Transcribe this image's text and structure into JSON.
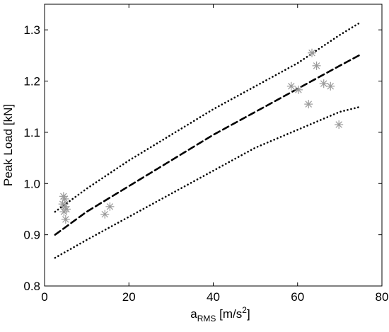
{
  "chart_data": {
    "type": "scatter",
    "title": "",
    "xlabel": {
      "base": "a",
      "sub": "RMS",
      "unit_pre": " [m/s",
      "sup": "2",
      "unit_post": "]"
    },
    "ylabel": "Peak Load [kN]",
    "xlim": [
      0,
      80
    ],
    "ylim": [
      0.8,
      1.35
    ],
    "x_ticks": [
      0,
      20,
      40,
      60,
      80
    ],
    "y_ticks": [
      0.8,
      0.9,
      1.0,
      1.1,
      1.2,
      1.3
    ],
    "x_tick_labels": [
      "0",
      "20",
      "40",
      "60",
      "80"
    ],
    "y_tick_labels": [
      "0.8",
      "0.9",
      "1.0",
      "1.1",
      "1.2",
      "1.3"
    ],
    "grid": false,
    "legend": "none",
    "colors": {
      "markers": "#9a9a9a",
      "lines": "#000000"
    },
    "series": [
      {
        "kind": "line",
        "style": "dashed",
        "x": [
          2.5,
          10,
          20,
          30,
          40,
          50,
          60,
          70,
          75
        ],
        "y": [
          0.9,
          0.945,
          0.995,
          1.045,
          1.095,
          1.14,
          1.185,
          1.23,
          1.252
        ]
      },
      {
        "kind": "line",
        "style": "dotted",
        "x": [
          2.5,
          10,
          20,
          30,
          40,
          50,
          60,
          70,
          75
        ],
        "y": [
          0.945,
          0.99,
          1.045,
          1.095,
          1.145,
          1.19,
          1.235,
          1.29,
          1.315
        ]
      },
      {
        "kind": "line",
        "style": "dotted",
        "x": [
          2.5,
          10,
          20,
          30,
          40,
          50,
          60,
          70,
          75
        ],
        "y": [
          0.855,
          0.89,
          0.935,
          0.98,
          1.025,
          1.07,
          1.105,
          1.14,
          1.15
        ]
      },
      {
        "kind": "scatter",
        "marker": "asterisk",
        "x": [
          4.5,
          4.8,
          4.3,
          4.9,
          5.2,
          4.6,
          5.0,
          14.3,
          15.5,
          58.5,
          60.2,
          62.6,
          63.4,
          64.5,
          66.2,
          67.8,
          69.8
        ],
        "y": [
          0.975,
          0.97,
          0.96,
          0.955,
          0.95,
          0.945,
          0.93,
          0.94,
          0.955,
          1.19,
          1.183,
          1.155,
          1.255,
          1.23,
          1.195,
          1.19,
          1.115
        ]
      }
    ]
  }
}
